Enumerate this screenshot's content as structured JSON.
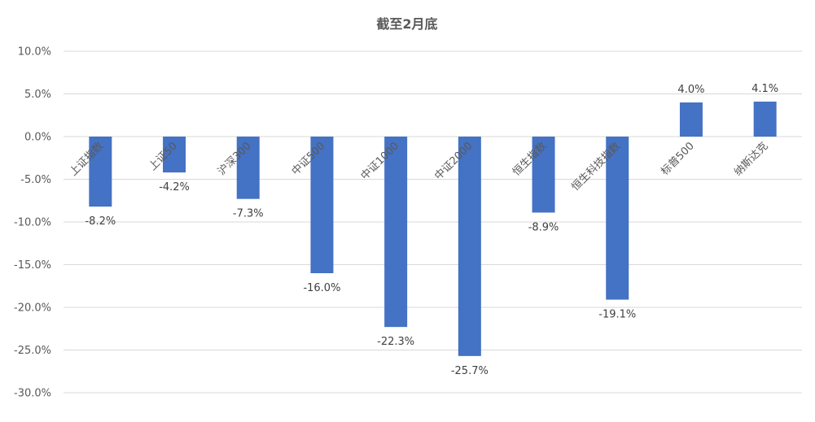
{
  "chart_data": {
    "type": "bar",
    "title": "截至2月底",
    "categories": [
      "上证指数",
      "上证50",
      "沪深300",
      "中证500",
      "中证1000",
      "中证2000",
      "恒生指数",
      "恒生科技指数",
      "标普500",
      "纳斯达克"
    ],
    "values": [
      -8.2,
      -4.2,
      -7.3,
      -16.0,
      -22.3,
      -25.7,
      -8.9,
      -19.1,
      4.0,
      4.1
    ],
    "data_labels": [
      "-8.2%",
      "-4.2%",
      "-7.3%",
      "-16.0%",
      "-22.3%",
      "-25.7%",
      "-8.9%",
      "-19.1%",
      "4.0%",
      "4.1%"
    ],
    "yticks": [
      10,
      5,
      0,
      -5,
      -10,
      -15,
      -20,
      -25,
      -30
    ],
    "ytick_labels": [
      "10.0%",
      "5.0%",
      "0.0%",
      "-5.0%",
      "-10.0%",
      "-15.0%",
      "-20.0%",
      "-25.0%",
      "-30.0%"
    ],
    "ylim": [
      -30,
      10
    ],
    "xlabel": "",
    "ylabel": "",
    "grid": true,
    "legend": "none",
    "bar_color": "#4472C4",
    "grid_color": "#D9D9D9"
  }
}
